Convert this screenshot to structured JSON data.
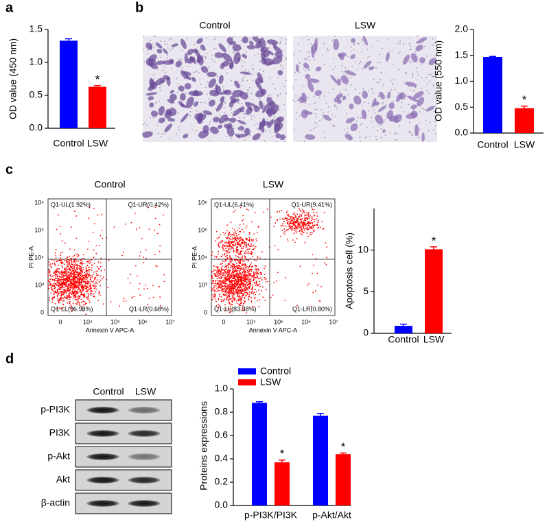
{
  "panel_labels": [
    "a",
    "b",
    "c",
    "d"
  ],
  "micrographs": {
    "titles": [
      "Control",
      "LSW"
    ]
  },
  "flow": {
    "titles": [
      "Control",
      "LSW"
    ],
    "y_label": "PI PE-A",
    "x_label": "Annexin V APC-A",
    "yticks": [
      "0",
      "10³",
      "10⁴",
      "10⁵",
      "10⁶"
    ],
    "xticks": [
      "0",
      "10⁴",
      "10⁵",
      "10⁶",
      "10⁷"
    ],
    "quadrants": [
      [
        "Q1-UL(1.92%)",
        "Q1-UR(0.42%)",
        "Q1-LL(96.98%)",
        "Q1-LR(0.68%)"
      ],
      [
        "Q1-UL(6.41%)",
        "Q1-UR(9.41%)",
        "Q1-LL(83.38%)",
        "Q1-LR(0.80%)"
      ]
    ]
  },
  "blot": {
    "columns": [
      "Control",
      "LSW"
    ],
    "rows": [
      "p-PI3K",
      "PI3K",
      "p-Akt",
      "Akt",
      "β-actin"
    ]
  },
  "chart_data": [
    {
      "type": "bar",
      "y_label": "OD value (450 nm)",
      "categories": [
        "Control",
        "LSW"
      ],
      "values": [
        1.33,
        0.63
      ],
      "errors": [
        0.03,
        0.02
      ],
      "colors": [
        "#0000ff",
        "#ff0000"
      ],
      "significance": [
        null,
        "*"
      ],
      "ylim": [
        0,
        1.5
      ],
      "yticks": [
        {
          "value": 0,
          "label": "0.0"
        },
        0.5,
        {
          "value": 1,
          "label": "1.0"
        },
        1.5
      ]
    },
    {
      "type": "bar",
      "y_label": "OD value (550 nm)",
      "categories": [
        "Control",
        "LSW"
      ],
      "values": [
        1.47,
        0.48
      ],
      "errors": [
        0.01,
        0.04
      ],
      "colors": [
        "#0000ff",
        "#ff0000"
      ],
      "significance": [
        null,
        "*"
      ],
      "ylim": [
        0,
        2
      ],
      "yticks": [
        {
          "value": 0,
          "label": "0.0"
        },
        0.5,
        {
          "value": 1,
          "label": "1.0"
        },
        1.5,
        {
          "value": 2,
          "label": "2.0"
        }
      ]
    },
    {
      "type": "bar",
      "y_label": "Apoptosis cell (%)",
      "categories": [
        "Control",
        "LSW"
      ],
      "values": [
        0.9,
        10.1
      ],
      "errors": [
        0.2,
        0.3
      ],
      "colors": [
        "#0000ff",
        "#ff0000"
      ],
      "significance": [
        null,
        "*"
      ],
      "ylim": [
        0,
        15
      ],
      "yticks": [
        0,
        5,
        10
      ]
    },
    {
      "type": "grouped-bar",
      "y_label": "Proteins expressions",
      "categories": [
        "p-PI3K/PI3K",
        "p-Akt/Akt"
      ],
      "series": [
        {
          "name": "Control",
          "color": "#0000ff",
          "values": [
            0.88,
            0.77
          ],
          "errors": [
            0.01,
            0.02
          ],
          "significance": [
            null,
            null
          ]
        },
        {
          "name": "LSW",
          "color": "#ff0000",
          "values": [
            0.37,
            0.44
          ],
          "errors": [
            0.02,
            0.01
          ],
          "significance": [
            "*",
            "*"
          ]
        }
      ],
      "ylim": [
        0,
        1
      ],
      "yticks": [
        {
          "value": 0,
          "label": "0.0"
        },
        0.2,
        0.4,
        0.6,
        0.8,
        {
          "value": 1,
          "label": "1.0"
        }
      ]
    }
  ]
}
